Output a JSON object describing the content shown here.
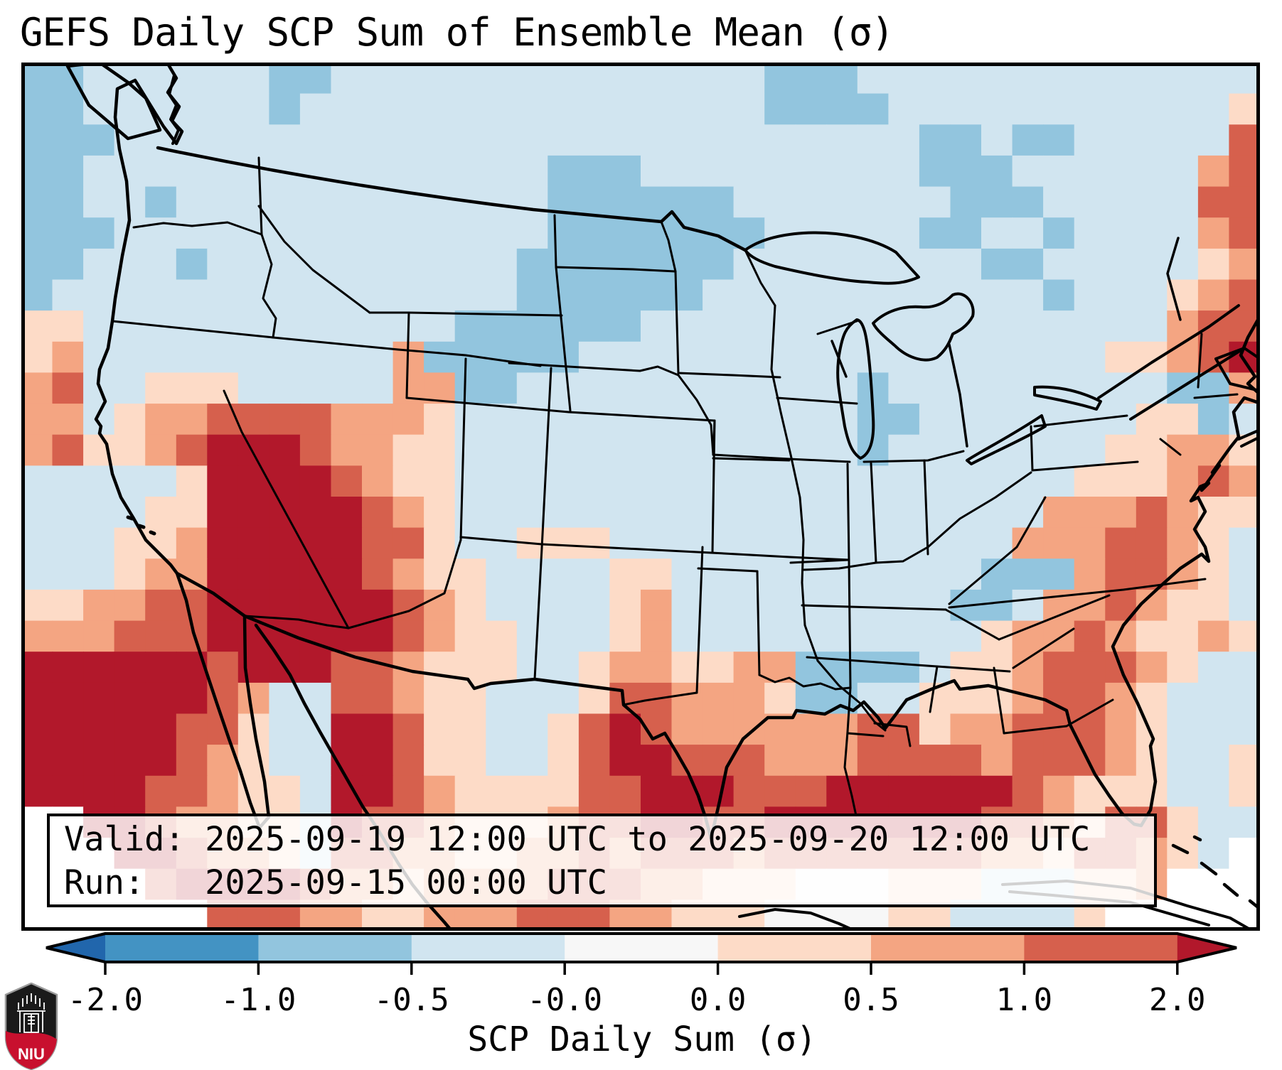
{
  "title": "GEFS Daily SCP Sum of Ensemble Mean (σ)",
  "info_box": {
    "valid_line": "Valid: 2025-09-19 12:00 UTC to 2025-09-20 12:00 UTC",
    "run_line": "Run:   2025-09-15 00:00 UTC"
  },
  "colorbar": {
    "label": "SCP Daily Sum (σ)",
    "tick_labels": [
      "-2.0",
      "-1.0",
      "-0.5",
      "-0.0",
      "0.0",
      "0.5",
      "1.0",
      "2.0"
    ],
    "segment_colors": [
      "#4393c3",
      "#92c5de",
      "#d1e5f0",
      "#f7f7f7",
      "#fddbc7",
      "#f4a582",
      "#d6604d"
    ],
    "extend_left_color": "#2166ac",
    "extend_right_color": "#b2182b"
  },
  "logo": {
    "text": "NIU",
    "red": "#c8102e",
    "black": "#1a1a1a"
  },
  "chart_data": {
    "type": "heatmap",
    "title": "GEFS Daily SCP Sum of Ensemble Mean (σ)",
    "units": "sigma (standardized anomaly)",
    "colorbar_levels": [
      -2.0,
      -1.0,
      -0.5,
      -0.0,
      0.0,
      0.5,
      1.0,
      2.0
    ],
    "region": "Continental United States, northern Mexico, southern Canada, Gulf of Mexico and western Atlantic",
    "palette": {
      "a": "#d1e5f0",
      "b": "#92c5de",
      "c": "#4393c3",
      "w": "#f7f7f7",
      "p": "#fddbc7",
      "s": "#f4a582",
      "r": "#d6604d",
      "R": "#b2182b",
      "W": "#ffffff"
    },
    "value_of": {
      "a": -0.25,
      "b": -0.75,
      "c": -1.5,
      "w": 0.0,
      "p": 0.25,
      "s": 0.75,
      "r": 1.5,
      "R": 2.5,
      "W": null
    },
    "grid_cols": 40,
    "grid_rows_count": 28,
    "grid_rows": [
      "bbaaaaaabbaaaaaaaaaaaaaabbbaaaaaaaaaaaaa",
      "bbaaaaaabaaaaaaaaaaaaaaabbbbaaaaaaaaaaap",
      "bbbaaaaaaaaaaaaaaaaaaaaaaaaaabbabbaaaaar",
      "bbaaaaaaaaaaaaaaabbbaaaaaaaaabbbaaaaaasr",
      "bbaabaaaaaaaaaaaabbbbbbaaaaaaabbbaaaaarr",
      "bbbaaaaaaaaaaaaaabbbbbbbaaaaabbaabaaaasr",
      "bbaaabaaaaaaaaaabbbbbbbaaaaaaaabbaaaaaps",
      "baaaaaaaaaaaaaaabbbbbbaaaaaaaaaaabaaapsr",
      "ppaaaaaaaaaaaabbbbbbaaaaaaaaaaaaaaaaasrr",
      "psaaaaaaaaaasbbbbbaaaaaaaaaaaaaaaaappsrR",
      "sraapppaaaaassbbaaaaaaaaaaabaaaaaaaaabbs",
      "ssapssrrrrssspaaaaaaaaaaaaabbaaaaaaappba",
      "srppsrRRRrssppaaaaaaaaaaaaabaaaaaaappssp",
      "aaaaapRRRRrsppaaaaaaaaaaaaaaaaaaaapppsrs",
      "aaaappRRRRRrspaaaaaaaaaaaaaaaaaaasssrspp",
      "aaappsRRRRRrrpaapppaaaaaaaaaaaaasssrrspa",
      "aaapssRRRRRrsppaaaappaaaaaaaaaabbbsrrspa",
      "ppssrrRRRRRRrspaaaapsaaaaaaaaabbassrsppa",
      "sssrrrRRRRRRrsppaaapsaaaaaaaaaapssrsppsp",
      "RRRRRRrRRRrrspppaapssppssbbbbappsrrrspaa",
      "RRRRRRrsaarrsppaaaprrssspbbaapppsrrspaaa",
      "RRRRRrrpaaRRrppaaprRrssssssrrpssrrrspaaa",
      "RRRRRrspaaRRrppaaprRRrrrsssrrrrsrrrspaap",
      "RRRRrrsppaRRrspppprrRRRrrrRRRRRRrspppaap",
      "WWRRrssppaRrrspppsrrRRrrRRRRRRRrrsprrpaa",
      "WWWRRrssparrssppssrsrrrsrrrrrrrssprrspaW",
      "WWWWrRRRRrsspssssrrrsspppwwwpppaaappsWWW",
      "WWWWWWrrrssppsssrrrsspppwwwwppaaaapWWWWW"
    ],
    "annotations": [
      "strong positive (dark red) maximum over southern Nevada / western Arizona / Baja California",
      "positive band along western Gulf of Mexico and Texas coast extending across Gulf toward south Florida",
      "positive band offshore in the Atlantic east of Florida extending northeast to Nova Scotia",
      "weak negative (light blue) over most of central and eastern CONUS",
      "moderate negative over western Montana/Idaho and Pacific Northwest coast"
    ]
  }
}
